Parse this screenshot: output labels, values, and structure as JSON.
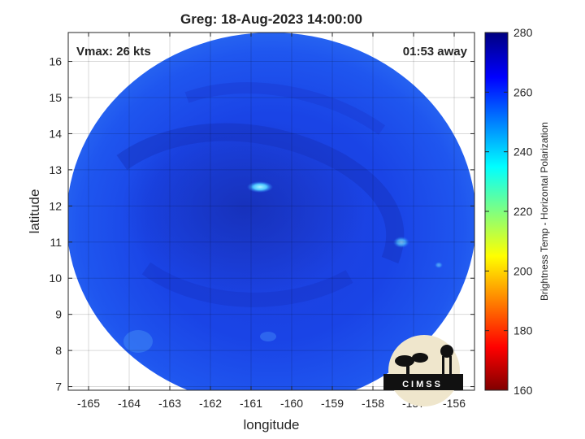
{
  "title": "Greg: 18-Aug-2023 14:00:00",
  "vmax_text": "Vmax: 26 kts",
  "away_text": "01:53 away",
  "xaxis": {
    "label": "longitude",
    "ticks": [
      "-165",
      "-164",
      "-163",
      "-162",
      "-161",
      "-160",
      "-159",
      "-158",
      "-157",
      "-156"
    ],
    "values": [
      -165,
      -164,
      -163,
      -162,
      -161,
      -160,
      -159,
      -158,
      -157,
      -156
    ],
    "range": [
      -165.5,
      -155.5
    ]
  },
  "yaxis": {
    "label": "latitude",
    "ticks": [
      "7",
      "8",
      "9",
      "10",
      "11",
      "12",
      "13",
      "14",
      "15",
      "16"
    ],
    "values": [
      7,
      8,
      9,
      10,
      11,
      12,
      13,
      14,
      15,
      16
    ],
    "range": [
      6.9,
      16.8
    ]
  },
  "colorbar": {
    "label": "Brightness Temp - Horizontal Polarization",
    "ticks": [
      "160",
      "180",
      "200",
      "220",
      "240",
      "260",
      "280"
    ],
    "values": [
      160,
      180,
      200,
      220,
      240,
      260,
      280
    ],
    "range": [
      160,
      280
    ]
  },
  "logo_text": "CIMSS",
  "colors": {
    "background_field": "#1a3ee0",
    "warm_band": "#1730c0",
    "cold_spot": "#4fc8ff"
  },
  "chart_data": {
    "type": "heatmap",
    "title": "Greg: 18-Aug-2023 14:00:00",
    "xlabel": "longitude",
    "ylabel": "latitude",
    "xlim": [
      -165.5,
      -155.5
    ],
    "ylim": [
      6.9,
      16.8
    ],
    "colorbar_label": "Brightness Temp - Horizontal Polarization",
    "color_range": [
      160,
      280
    ],
    "grid": true
  }
}
